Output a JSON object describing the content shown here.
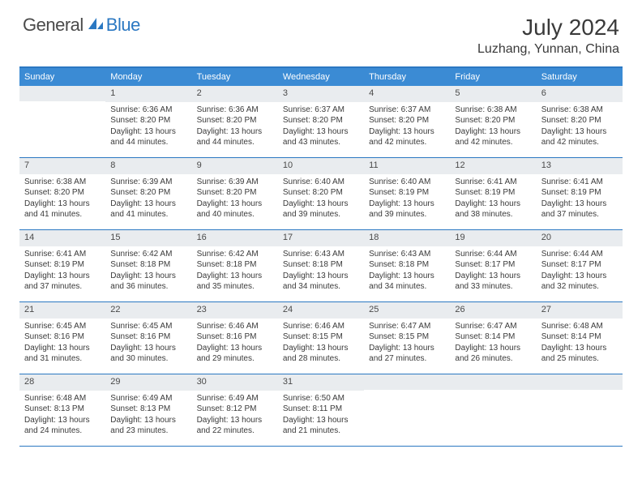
{
  "logo": {
    "part1": "General",
    "part2": "Blue"
  },
  "title": "July 2024",
  "location": "Luzhang, Yunnan, China",
  "weekdays": [
    "Sunday",
    "Monday",
    "Tuesday",
    "Wednesday",
    "Thursday",
    "Friday",
    "Saturday"
  ],
  "colors": {
    "accent": "#3b8bd4",
    "border": "#2b78c2",
    "dayBar": "#e9ecef",
    "text": "#3a3a3a"
  },
  "weeks": [
    [
      {
        "n": "",
        "sunrise": "",
        "sunset": "",
        "daylight": ""
      },
      {
        "n": "1",
        "sunrise": "Sunrise: 6:36 AM",
        "sunset": "Sunset: 8:20 PM",
        "daylight": "Daylight: 13 hours and 44 minutes."
      },
      {
        "n": "2",
        "sunrise": "Sunrise: 6:36 AM",
        "sunset": "Sunset: 8:20 PM",
        "daylight": "Daylight: 13 hours and 44 minutes."
      },
      {
        "n": "3",
        "sunrise": "Sunrise: 6:37 AM",
        "sunset": "Sunset: 8:20 PM",
        "daylight": "Daylight: 13 hours and 43 minutes."
      },
      {
        "n": "4",
        "sunrise": "Sunrise: 6:37 AM",
        "sunset": "Sunset: 8:20 PM",
        "daylight": "Daylight: 13 hours and 42 minutes."
      },
      {
        "n": "5",
        "sunrise": "Sunrise: 6:38 AM",
        "sunset": "Sunset: 8:20 PM",
        "daylight": "Daylight: 13 hours and 42 minutes."
      },
      {
        "n": "6",
        "sunrise": "Sunrise: 6:38 AM",
        "sunset": "Sunset: 8:20 PM",
        "daylight": "Daylight: 13 hours and 42 minutes."
      }
    ],
    [
      {
        "n": "7",
        "sunrise": "Sunrise: 6:38 AM",
        "sunset": "Sunset: 8:20 PM",
        "daylight": "Daylight: 13 hours and 41 minutes."
      },
      {
        "n": "8",
        "sunrise": "Sunrise: 6:39 AM",
        "sunset": "Sunset: 8:20 PM",
        "daylight": "Daylight: 13 hours and 41 minutes."
      },
      {
        "n": "9",
        "sunrise": "Sunrise: 6:39 AM",
        "sunset": "Sunset: 8:20 PM",
        "daylight": "Daylight: 13 hours and 40 minutes."
      },
      {
        "n": "10",
        "sunrise": "Sunrise: 6:40 AM",
        "sunset": "Sunset: 8:20 PM",
        "daylight": "Daylight: 13 hours and 39 minutes."
      },
      {
        "n": "11",
        "sunrise": "Sunrise: 6:40 AM",
        "sunset": "Sunset: 8:19 PM",
        "daylight": "Daylight: 13 hours and 39 minutes."
      },
      {
        "n": "12",
        "sunrise": "Sunrise: 6:41 AM",
        "sunset": "Sunset: 8:19 PM",
        "daylight": "Daylight: 13 hours and 38 minutes."
      },
      {
        "n": "13",
        "sunrise": "Sunrise: 6:41 AM",
        "sunset": "Sunset: 8:19 PM",
        "daylight": "Daylight: 13 hours and 37 minutes."
      }
    ],
    [
      {
        "n": "14",
        "sunrise": "Sunrise: 6:41 AM",
        "sunset": "Sunset: 8:19 PM",
        "daylight": "Daylight: 13 hours and 37 minutes."
      },
      {
        "n": "15",
        "sunrise": "Sunrise: 6:42 AM",
        "sunset": "Sunset: 8:18 PM",
        "daylight": "Daylight: 13 hours and 36 minutes."
      },
      {
        "n": "16",
        "sunrise": "Sunrise: 6:42 AM",
        "sunset": "Sunset: 8:18 PM",
        "daylight": "Daylight: 13 hours and 35 minutes."
      },
      {
        "n": "17",
        "sunrise": "Sunrise: 6:43 AM",
        "sunset": "Sunset: 8:18 PM",
        "daylight": "Daylight: 13 hours and 34 minutes."
      },
      {
        "n": "18",
        "sunrise": "Sunrise: 6:43 AM",
        "sunset": "Sunset: 8:18 PM",
        "daylight": "Daylight: 13 hours and 34 minutes."
      },
      {
        "n": "19",
        "sunrise": "Sunrise: 6:44 AM",
        "sunset": "Sunset: 8:17 PM",
        "daylight": "Daylight: 13 hours and 33 minutes."
      },
      {
        "n": "20",
        "sunrise": "Sunrise: 6:44 AM",
        "sunset": "Sunset: 8:17 PM",
        "daylight": "Daylight: 13 hours and 32 minutes."
      }
    ],
    [
      {
        "n": "21",
        "sunrise": "Sunrise: 6:45 AM",
        "sunset": "Sunset: 8:16 PM",
        "daylight": "Daylight: 13 hours and 31 minutes."
      },
      {
        "n": "22",
        "sunrise": "Sunrise: 6:45 AM",
        "sunset": "Sunset: 8:16 PM",
        "daylight": "Daylight: 13 hours and 30 minutes."
      },
      {
        "n": "23",
        "sunrise": "Sunrise: 6:46 AM",
        "sunset": "Sunset: 8:16 PM",
        "daylight": "Daylight: 13 hours and 29 minutes."
      },
      {
        "n": "24",
        "sunrise": "Sunrise: 6:46 AM",
        "sunset": "Sunset: 8:15 PM",
        "daylight": "Daylight: 13 hours and 28 minutes."
      },
      {
        "n": "25",
        "sunrise": "Sunrise: 6:47 AM",
        "sunset": "Sunset: 8:15 PM",
        "daylight": "Daylight: 13 hours and 27 minutes."
      },
      {
        "n": "26",
        "sunrise": "Sunrise: 6:47 AM",
        "sunset": "Sunset: 8:14 PM",
        "daylight": "Daylight: 13 hours and 26 minutes."
      },
      {
        "n": "27",
        "sunrise": "Sunrise: 6:48 AM",
        "sunset": "Sunset: 8:14 PM",
        "daylight": "Daylight: 13 hours and 25 minutes."
      }
    ],
    [
      {
        "n": "28",
        "sunrise": "Sunrise: 6:48 AM",
        "sunset": "Sunset: 8:13 PM",
        "daylight": "Daylight: 13 hours and 24 minutes."
      },
      {
        "n": "29",
        "sunrise": "Sunrise: 6:49 AM",
        "sunset": "Sunset: 8:13 PM",
        "daylight": "Daylight: 13 hours and 23 minutes."
      },
      {
        "n": "30",
        "sunrise": "Sunrise: 6:49 AM",
        "sunset": "Sunset: 8:12 PM",
        "daylight": "Daylight: 13 hours and 22 minutes."
      },
      {
        "n": "31",
        "sunrise": "Sunrise: 6:50 AM",
        "sunset": "Sunset: 8:11 PM",
        "daylight": "Daylight: 13 hours and 21 minutes."
      },
      {
        "n": "",
        "sunrise": "",
        "sunset": "",
        "daylight": ""
      },
      {
        "n": "",
        "sunrise": "",
        "sunset": "",
        "daylight": ""
      },
      {
        "n": "",
        "sunrise": "",
        "sunset": "",
        "daylight": ""
      }
    ]
  ]
}
